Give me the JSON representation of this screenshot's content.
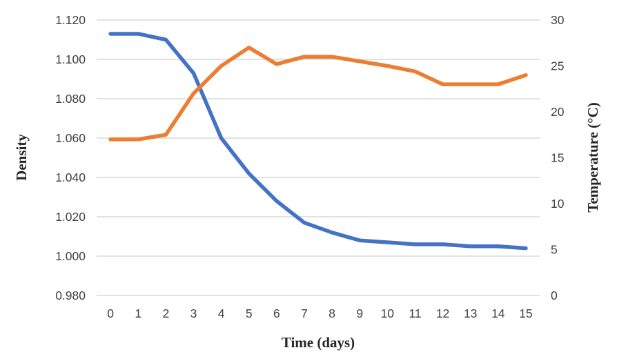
{
  "chart_data": {
    "type": "line",
    "title": "",
    "xlabel": "Time (days)",
    "ylabel_left": "Density",
    "ylabel_right": "Temperature (°C)",
    "categories": [
      0,
      1,
      2,
      3,
      4,
      5,
      6,
      7,
      8,
      9,
      10,
      11,
      12,
      13,
      14,
      15
    ],
    "x_tick_labels": [
      "0",
      "1",
      "2",
      "3",
      "4",
      "5",
      "6",
      "7",
      "8",
      "9",
      "10",
      "11",
      "12",
      "13",
      "14",
      "15"
    ],
    "left_axis": {
      "min": 0.98,
      "max": 1.12,
      "step": 0.02,
      "tick_labels": [
        "0.980",
        "1.000",
        "1.020",
        "1.040",
        "1.060",
        "1.080",
        "1.100",
        "1.120"
      ]
    },
    "right_axis": {
      "min": 0,
      "max": 30,
      "step": 5,
      "tick_labels": [
        "0",
        "5",
        "10",
        "15",
        "20",
        "25",
        "30"
      ]
    },
    "series": [
      {
        "name": "Density",
        "axis": "left",
        "color": "#4472C4",
        "values": [
          1.113,
          1.113,
          1.11,
          1.093,
          1.06,
          1.042,
          1.028,
          1.017,
          1.012,
          1.008,
          1.007,
          1.006,
          1.006,
          1.005,
          1.005,
          1.004
        ]
      },
      {
        "name": "Temperature",
        "axis": "right",
        "color": "#ED7D31",
        "values": [
          17,
          17,
          17.5,
          22,
          25,
          27,
          25.2,
          26,
          26,
          25.5,
          25,
          24.4,
          23,
          23,
          23,
          24
        ]
      }
    ],
    "grid": true,
    "legend": "none"
  },
  "colors": {
    "gridline": "#D9D9D9",
    "tick_text": "#404040",
    "background": "#FFFFFF"
  }
}
